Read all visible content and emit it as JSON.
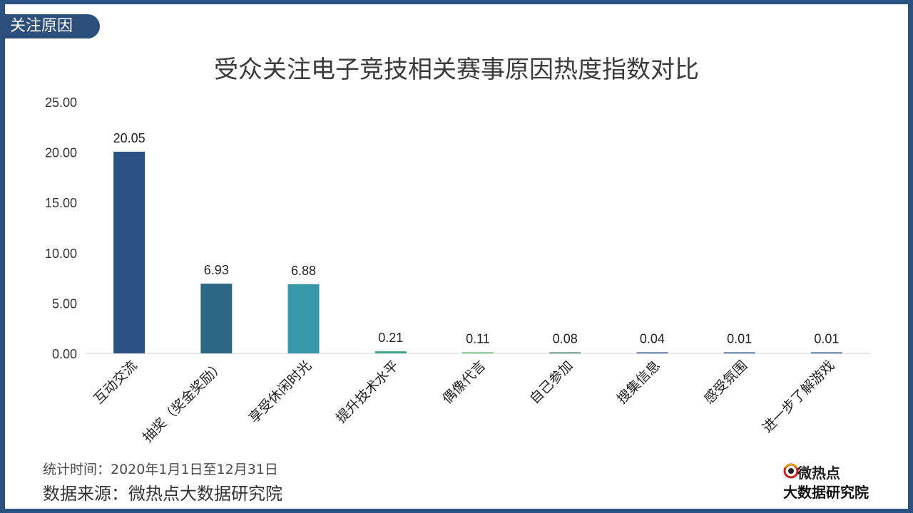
{
  "section_tag": "关注原因",
  "footnote": "统计时间：2020年1月1日至12月31日",
  "source": "数据来源：微热点大数据研究院",
  "logo": {
    "top": "微热点",
    "bottom": "大数据研究院",
    "icon": "eye-swirl-icon"
  },
  "colors": {
    "frame": "#2c5282",
    "tag": "#2c4f7c"
  },
  "chart_data": {
    "type": "bar",
    "title": "受众关注电子竞技相关赛事原因热度指数对比",
    "xlabel": "",
    "ylabel": "",
    "ylim": [
      0,
      25
    ],
    "yticks": [
      "0.00",
      "5.00",
      "10.00",
      "15.00",
      "20.00",
      "25.00"
    ],
    "grid": false,
    "categories": [
      "互动交流",
      "抽奖（奖金奖励）",
      "享受休闲时光",
      "提升技术水平",
      "偶像代言",
      "自己参加",
      "搜集信息",
      "感受氛围",
      "进一步了解游戏"
    ],
    "values": [
      20.05,
      6.93,
      6.88,
      0.21,
      0.11,
      0.08,
      0.04,
      0.01,
      0.01
    ],
    "value_labels": [
      "20.05",
      "6.93",
      "6.88",
      "0.21",
      "0.11",
      "0.08",
      "0.04",
      "0.01",
      "0.01"
    ],
    "bar_colors": [
      "#2c5183",
      "#2c6783",
      "#3797a8",
      "#43a08a",
      "#5fb56f",
      "#3f7a5f",
      "#2c5183",
      "#2c5183",
      "#2c5183"
    ]
  }
}
